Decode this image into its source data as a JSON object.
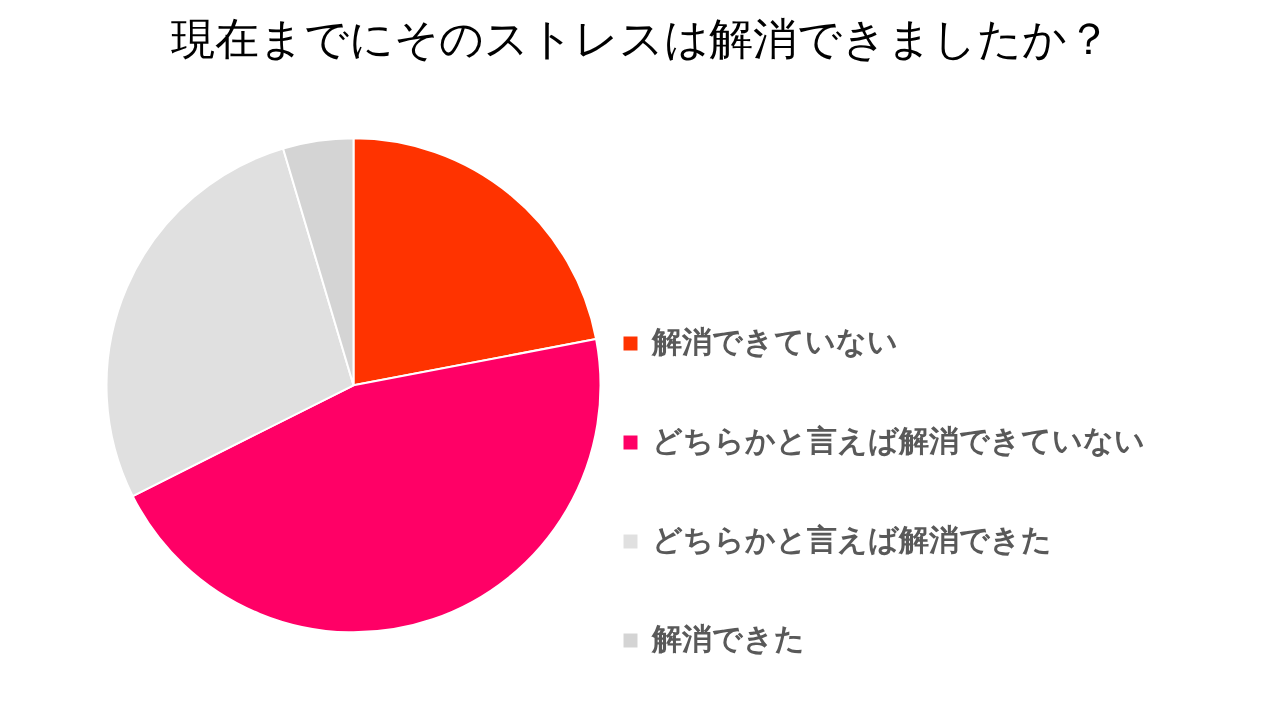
{
  "chart_data": {
    "type": "pie",
    "title": "現在までにそのストレスは解消できましたか？",
    "categories": [
      "解消できていない",
      "どちらかと言えば解消できていない",
      "どちらかと言えば解消できた",
      "解消できた"
    ],
    "values": [
      22,
      45.6,
      27.8,
      4.6
    ],
    "colors": [
      "#ff3300",
      "#ff0066",
      "#e0e0e0",
      "#d4d4d4"
    ],
    "legend": "right"
  }
}
